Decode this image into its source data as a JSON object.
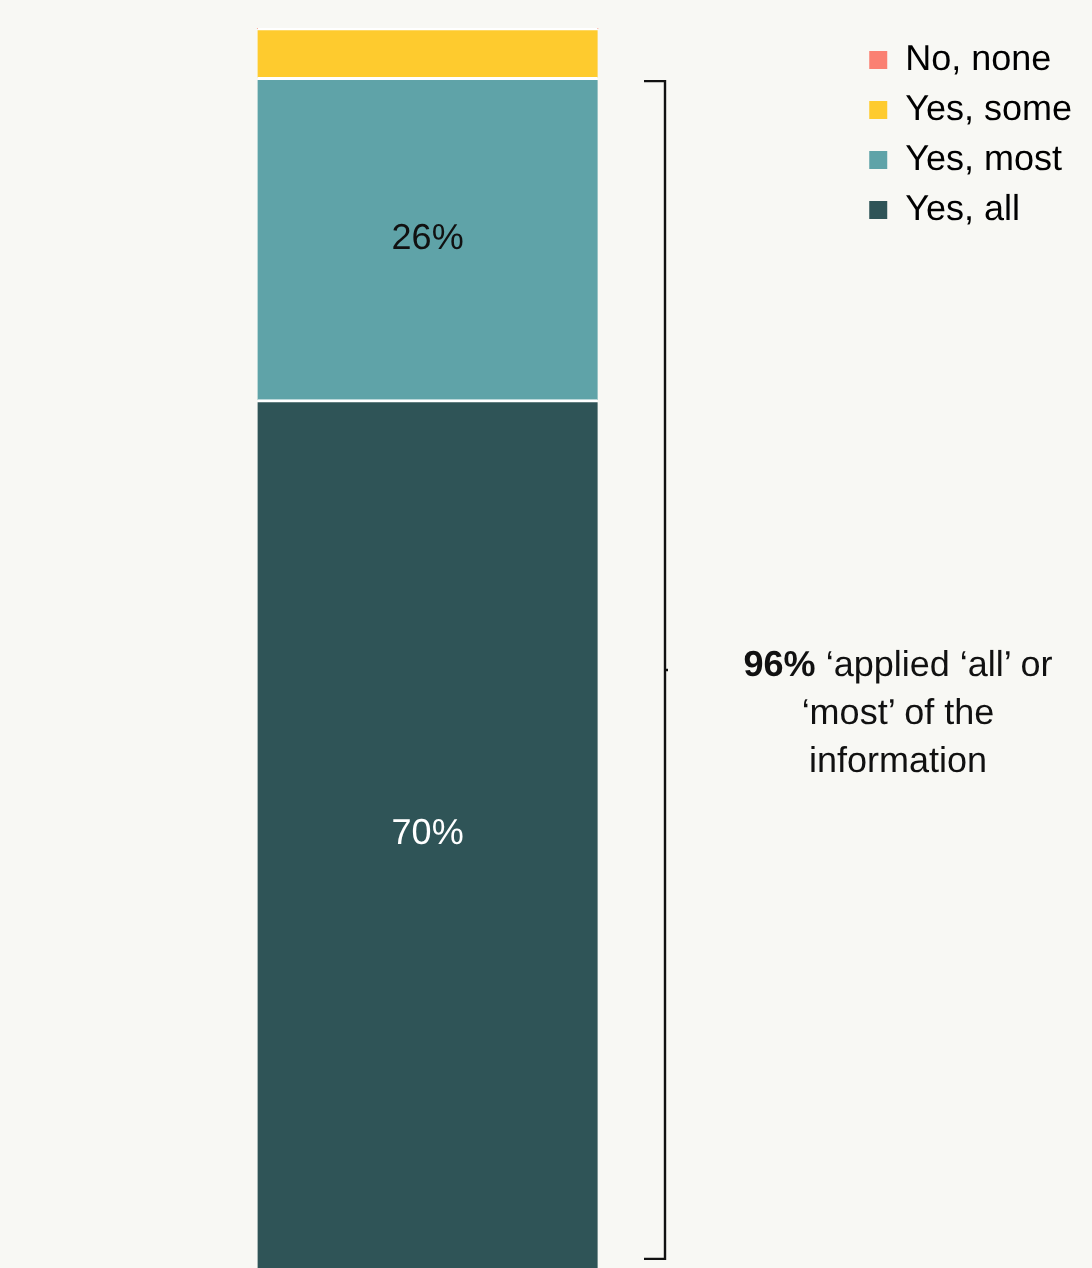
{
  "chart_data": {
    "type": "bar",
    "stacked": true,
    "categories": [
      null
    ],
    "series": [
      {
        "name": "Yes, all",
        "color": "#2f5457",
        "values": [
          70
        ],
        "value_labels": [
          "70%"
        ]
      },
      {
        "name": "Yes, most",
        "color": "#5fa3a8",
        "values": [
          26
        ],
        "value_labels": [
          "26%"
        ]
      },
      {
        "name": "Yes, some",
        "color": "#fecb2e",
        "values": [
          4
        ],
        "value_labels": [
          null
        ]
      },
      {
        "name": "No, none",
        "color": "#fa8072",
        "values": [
          0
        ],
        "value_labels": [
          null
        ]
      }
    ],
    "ylim": [
      0,
      100
    ],
    "tick_labels": false,
    "legend": "top right",
    "annotations": [
      "96% ‘applied ‘all’ or ‘most’ of the information"
    ]
  }
}
